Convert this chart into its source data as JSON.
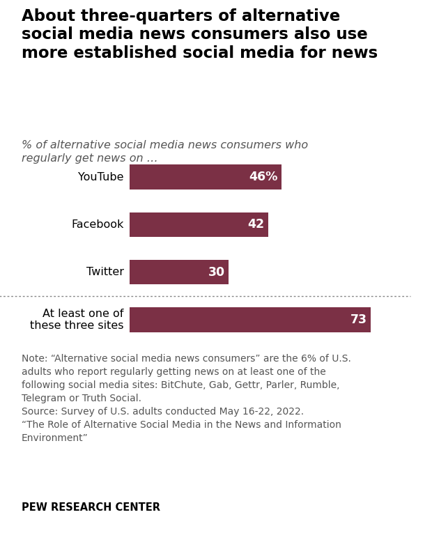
{
  "title": "About three-quarters of alternative\nsocial media news consumers also use\nmore established social media for news",
  "subtitle": "% of alternative social media news consumers who\nregularly get news on …",
  "categories": [
    "YouTube",
    "Facebook",
    "Twitter",
    "At least one of\nthese three sites"
  ],
  "values": [
    46,
    42,
    30,
    73
  ],
  "bar_color": "#7b3045",
  "value_labels": [
    "46%",
    "42",
    "30",
    "73"
  ],
  "xlim": [
    0,
    85
  ],
  "note_text": "Note: “Alternative social media news consumers” are the 6% of U.S.\nadults who report regularly getting news on at least one of the\nfollowing social media sites: BitChute, Gab, Gettr, Parler, Rumble,\nTelegram or Truth Social.\nSource: Survey of U.S. adults conducted May 16-22, 2022.\n“The Role of Alternative Social Media in the News and Information\nEnvironment”",
  "source_bold": "PEW RESEARCH CENTER",
  "background_color": "#ffffff",
  "title_fontsize": 16.5,
  "subtitle_fontsize": 11.5,
  "label_fontsize": 11.5,
  "value_fontsize": 12.5,
  "note_fontsize": 10,
  "pew_fontsize": 10.5
}
